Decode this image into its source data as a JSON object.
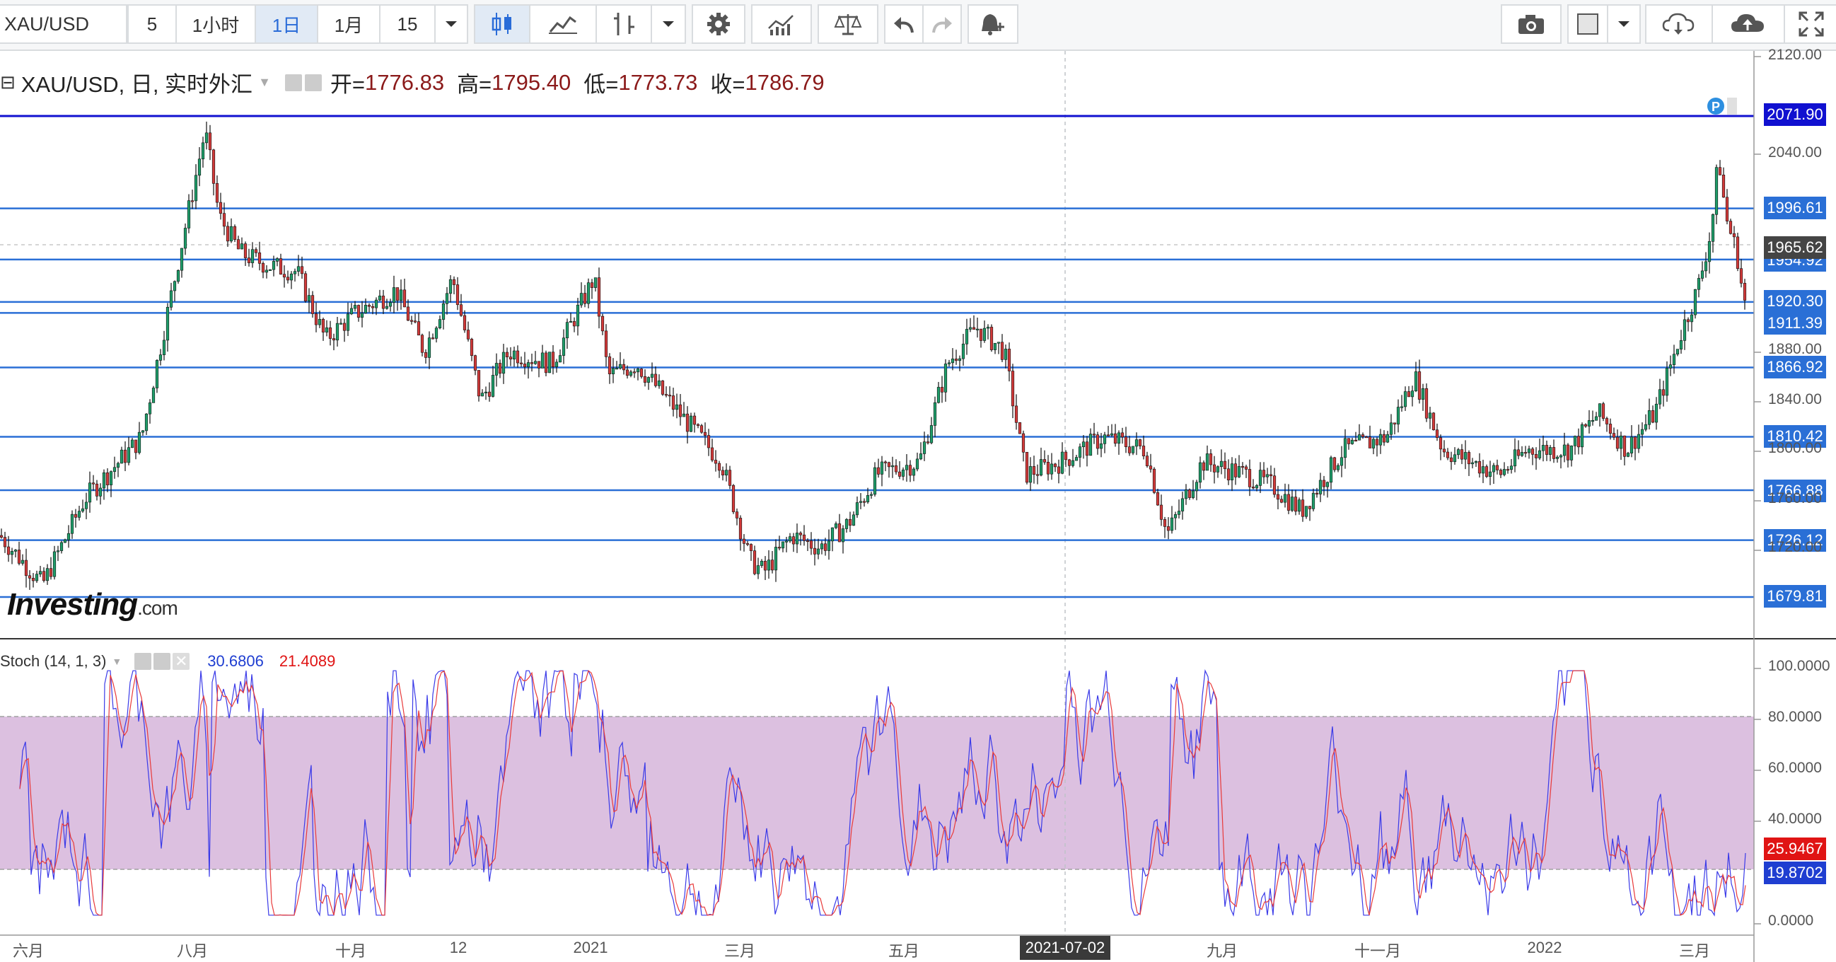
{
  "toolbar": {
    "symbol": "XAU/USD",
    "intervals": [
      {
        "label": "5",
        "active": false
      },
      {
        "label": "1小时",
        "active": false
      },
      {
        "label": "1日",
        "active": true
      },
      {
        "label": "1月",
        "active": false
      }
    ],
    "interval_select": "15",
    "icons": [
      "candlestick-chart-icon",
      "line-chart-icon",
      "bar-chart-icon",
      "settings-gear-icon",
      "indicators-icon",
      "compare-icon",
      "undo-icon",
      "redo-icon",
      "alert-icon",
      "camera-icon",
      "color-square-icon",
      "cloud-download-icon",
      "cloud-upload-icon",
      "fullscreen-icon"
    ]
  },
  "legend": {
    "title": "XAU/USD, 日, 实时外汇",
    "open_label": "开=",
    "open": "1776.83",
    "high_label": "高=",
    "high": "1795.40",
    "low_label": "低=",
    "low": "1773.73",
    "close_label": "收=",
    "close": "1786.79"
  },
  "stoch": {
    "label": "Stoch (14, 1, 3)",
    "k_value": "30.6806",
    "d_value": "21.4089",
    "k_color": "#3a3ae8",
    "d_color": "#e83a3a",
    "band_upper": "80.0000",
    "band_lower": "20.0000",
    "y_ticks": [
      "100.0000",
      "80.0000",
      "60.0000",
      "40.0000",
      "0.0000"
    ],
    "price_labels": [
      {
        "text": "25.9467",
        "color": "#e01414"
      },
      {
        "text": "19.8702",
        "color": "#1f3ed1"
      }
    ]
  },
  "price_axis": {
    "ticks": [
      "2120.00",
      "2040.00",
      "1880.00",
      "1840.00",
      "1800.00",
      "1760.00",
      "1720.00"
    ],
    "current_price": "1965.62",
    "hline_labels": [
      "2071.90",
      "1996.61",
      "1954.92",
      "1920.30",
      "1911.39",
      "1866.92",
      "1810.42",
      "1766.88",
      "1726.12",
      "1679.81"
    ]
  },
  "time_axis": {
    "labels": [
      "六月",
      "八月",
      "十月",
      "12",
      "2021",
      "三月",
      "五月",
      "九月",
      "十一月",
      "2022",
      "三月"
    ],
    "crosshair_label": "2021-07-02"
  },
  "watermark": {
    "brand": "Investing",
    "domain": ".com"
  },
  "chart_data": {
    "type": "candlestick",
    "symbol": "XAU/USD",
    "interval": "1日",
    "horizontal_levels": [
      2071.9,
      1996.61,
      1954.92,
      1920.3,
      1911.39,
      1866.92,
      1810.42,
      1766.88,
      1726.12,
      1679.81
    ],
    "y_range": [
      1640,
      2125
    ],
    "last_ohlc": {
      "open": 1776.83,
      "high": 1795.4,
      "low": 1773.73,
      "close": 1786.79
    },
    "stochastic": {
      "params": "14, 1, 3",
      "k": 30.6806,
      "d": 21.4089,
      "bands": [
        20,
        80
      ],
      "y_range": [
        0,
        100
      ]
    }
  }
}
